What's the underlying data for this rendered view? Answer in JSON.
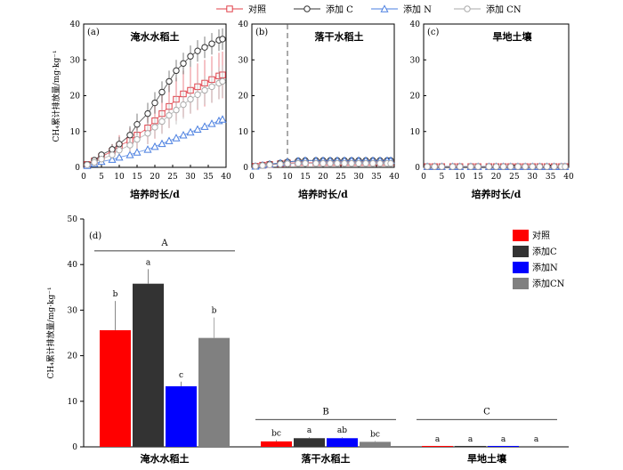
{
  "top_legend": [
    {
      "label": "对照",
      "color": "#e0404a",
      "marker": "square"
    },
    {
      "label": "添加 C",
      "color": "#333333",
      "marker": "circle"
    },
    {
      "label": "添加 N",
      "color": "#4a7fe0",
      "marker": "triangle"
    },
    {
      "label": "添加 CN",
      "color": "#aaaaaa",
      "marker": "circle"
    }
  ],
  "shared_axes": {
    "ylabel": "CH₄累计排放量/mg·kg⁻¹",
    "xlabel": "培养时长/d"
  },
  "chart_data": [
    {
      "type": "line",
      "panel": "(a)",
      "title": "淹水水稻土",
      "xlim": [
        0,
        40
      ],
      "ylim": [
        0,
        40
      ],
      "xticks": [
        0,
        5,
        10,
        15,
        20,
        25,
        30,
        35,
        40
      ],
      "yticks": [
        0,
        10,
        20,
        30,
        40
      ],
      "x": [
        1,
        3,
        5,
        8,
        10,
        13,
        15,
        18,
        20,
        22,
        24,
        26,
        28,
        30,
        32,
        34,
        36,
        38,
        39
      ],
      "series": [
        {
          "name": "对照",
          "values": [
            0.8,
            1.8,
            3,
            4.5,
            6,
            7.5,
            9,
            11,
            13,
            15,
            17,
            19,
            20.5,
            21.5,
            22.5,
            23.5,
            24.5,
            25.5,
            25.8
          ],
          "errors": [
            0.3,
            0.6,
            1,
            2,
            3,
            3.5,
            4,
            4.5,
            5,
            5.5,
            6,
            6,
            6.5,
            6.5,
            6.5,
            6.5,
            6.5,
            6.5,
            6.5
          ]
        },
        {
          "name": "添加 C",
          "values": [
            0.8,
            2,
            3.5,
            5,
            6.5,
            9,
            12,
            15,
            18,
            21,
            24,
            27,
            29,
            31,
            32.5,
            33.5,
            34.5,
            35.5,
            35.8
          ],
          "errors": [
            0.3,
            0.6,
            1,
            1.5,
            2,
            2.5,
            3,
            3,
            3,
            3,
            3,
            3,
            3,
            3,
            3,
            3,
            3,
            3,
            3
          ]
        },
        {
          "name": "添加 N",
          "values": [
            0.5,
            1,
            1.6,
            2.2,
            2.8,
            3.5,
            4.2,
            5,
            5.8,
            6.6,
            7.4,
            8.2,
            9,
            9.8,
            10.6,
            11.4,
            12.2,
            13,
            13.4
          ],
          "errors": [
            0.2,
            0.2,
            0.3,
            0.3,
            0.4,
            0.4,
            0.5,
            0.5,
            0.5,
            0.6,
            0.6,
            0.6,
            0.7,
            0.7,
            0.7,
            0.7,
            0.8,
            0.8,
            0.8
          ]
        },
        {
          "name": "添加 CN",
          "values": [
            0.7,
            1.4,
            2.3,
            3.5,
            4.8,
            6.2,
            7.8,
            9.5,
            11.2,
            12.8,
            14.5,
            16,
            17.5,
            19,
            20.3,
            21.5,
            22.5,
            23.5,
            24
          ],
          "errors": [
            0.3,
            0.5,
            0.8,
            1.2,
            1.6,
            2,
            2.5,
            3,
            3,
            3.5,
            3.5,
            4,
            4,
            4,
            4,
            4,
            4.5,
            4.5,
            4.5
          ]
        }
      ]
    },
    {
      "type": "line",
      "panel": "(b)",
      "title": "落干水稻土",
      "xlim": [
        0,
        40
      ],
      "ylim": [
        0,
        40
      ],
      "xticks": [
        0,
        5,
        10,
        15,
        20,
        25,
        30,
        35,
        40
      ],
      "yticks": [
        0,
        10,
        20,
        30,
        40
      ],
      "vline_x": 10,
      "x": [
        1,
        3,
        5,
        8,
        10,
        13,
        15,
        18,
        20,
        22,
        24,
        26,
        28,
        30,
        32,
        34,
        36,
        38,
        39
      ],
      "series": [
        {
          "name": "对照",
          "values": [
            0.3,
            0.6,
            0.8,
            1,
            1.2,
            1.3,
            1.3,
            1.3,
            1.3,
            1.3,
            1.3,
            1.3,
            1.3,
            1.3,
            1.3,
            1.3,
            1.3,
            1.3,
            1.3
          ],
          "errors": [
            0.3,
            0.3,
            0.3,
            0.3,
            0.3,
            0.3,
            0.3,
            0.3,
            0.3,
            0.3,
            0.3,
            0.3,
            0.3,
            0.3,
            0.3,
            0.3,
            0.3,
            0.3,
            0.3
          ]
        },
        {
          "name": "添加 C",
          "values": [
            0.3,
            0.6,
            0.9,
            1.2,
            1.5,
            1.8,
            1.9,
            1.9,
            1.9,
            1.9,
            1.9,
            1.9,
            1.9,
            1.9,
            1.9,
            1.9,
            1.9,
            1.9,
            1.9
          ],
          "errors": [
            0.3,
            0.3,
            0.3,
            0.3,
            0.3,
            0.3,
            0.3,
            0.3,
            0.3,
            0.3,
            0.3,
            0.3,
            0.3,
            0.3,
            0.3,
            0.3,
            0.3,
            0.3,
            0.3
          ]
        },
        {
          "name": "添加 N",
          "values": [
            0.3,
            0.6,
            0.9,
            1.2,
            1.5,
            1.8,
            1.9,
            1.9,
            1.9,
            1.9,
            1.9,
            1.9,
            1.9,
            1.9,
            1.9,
            1.9,
            1.9,
            1.9,
            1.9
          ],
          "errors": [
            0.3,
            0.3,
            0.3,
            0.3,
            0.3,
            0.3,
            0.3,
            0.3,
            0.3,
            0.3,
            0.3,
            0.3,
            0.3,
            0.3,
            0.3,
            0.3,
            0.3,
            0.3,
            0.3
          ]
        },
        {
          "name": "添加 CN",
          "values": [
            0.3,
            0.5,
            0.7,
            0.9,
            1,
            1.1,
            1.1,
            1.1,
            1.1,
            1.1,
            1.1,
            1.1,
            1.1,
            1.1,
            1.1,
            1.1,
            1.1,
            1.1,
            1.1
          ],
          "errors": [
            0.3,
            0.3,
            0.3,
            0.3,
            0.3,
            0.3,
            0.3,
            0.3,
            0.3,
            0.3,
            0.3,
            0.3,
            0.3,
            0.3,
            0.3,
            0.3,
            0.3,
            0.3,
            0.3
          ]
        }
      ]
    },
    {
      "type": "line",
      "panel": "(c)",
      "title": "旱地土壤",
      "xlim": [
        0,
        40
      ],
      "ylim": [
        0,
        40
      ],
      "xticks": [
        0,
        5,
        10,
        15,
        20,
        25,
        30,
        35,
        40
      ],
      "yticks": [
        0,
        10,
        20,
        30,
        40
      ],
      "x": [
        1,
        3,
        5,
        8,
        10,
        13,
        15,
        18,
        20,
        22,
        24,
        26,
        28,
        30,
        32,
        34,
        36,
        38,
        39
      ],
      "series": [
        {
          "name": "对照",
          "values": [
            0.2,
            0.2,
            0.2,
            0.2,
            0.2,
            0.2,
            0.2,
            0.2,
            0.2,
            0.2,
            0.2,
            0.2,
            0.2,
            0.2,
            0.2,
            0.2,
            0.2,
            0.2,
            0.2
          ],
          "errors": [
            0.3,
            0.3,
            0.3,
            0.3,
            0.3,
            0.3,
            0.3,
            0.3,
            0.3,
            0.3,
            0.3,
            0.3,
            0.3,
            0.3,
            0.3,
            0.3,
            0.3,
            0.3,
            0.3
          ]
        },
        {
          "name": "添加 C",
          "values": [
            0.2,
            0.2,
            0.2,
            0.2,
            0.2,
            0.2,
            0.2,
            0.2,
            0.2,
            0.2,
            0.2,
            0.2,
            0.2,
            0.2,
            0.2,
            0.2,
            0.2,
            0.2,
            0.2
          ],
          "errors": [
            0.3,
            0.3,
            0.3,
            0.3,
            0.3,
            0.3,
            0.3,
            0.3,
            0.3,
            0.3,
            0.3,
            0.3,
            0.3,
            0.3,
            0.3,
            0.3,
            0.3,
            0.3,
            0.3
          ]
        },
        {
          "name": "添加 N",
          "values": [
            0.2,
            0.2,
            0.2,
            0.2,
            0.2,
            0.2,
            0.2,
            0.2,
            0.2,
            0.2,
            0.2,
            0.2,
            0.2,
            0.2,
            0.2,
            0.2,
            0.2,
            0.2,
            0.2
          ],
          "errors": [
            0.3,
            0.3,
            0.3,
            0.3,
            0.3,
            0.3,
            0.3,
            0.3,
            0.3,
            0.3,
            0.3,
            0.3,
            0.3,
            0.3,
            0.3,
            0.3,
            0.3,
            0.3,
            0.3
          ]
        },
        {
          "name": "添加 CN",
          "values": [
            0.2,
            0.2,
            0.2,
            0.2,
            0.2,
            0.2,
            0.2,
            0.2,
            0.2,
            0.2,
            0.2,
            0.2,
            0.2,
            0.2,
            0.2,
            0.2,
            0.2,
            0.2,
            0.2
          ],
          "errors": [
            0.3,
            0.3,
            0.3,
            0.3,
            0.3,
            0.3,
            0.3,
            0.3,
            0.3,
            0.3,
            0.3,
            0.3,
            0.3,
            0.3,
            0.3,
            0.3,
            0.3,
            0.3,
            0.3
          ]
        }
      ]
    },
    {
      "type": "bar",
      "panel": "(d)",
      "ylim": [
        0,
        50
      ],
      "yticks": [
        0,
        10,
        20,
        30,
        40,
        50
      ],
      "ylabel": "CH₄累计排放量/mg·kg⁻¹",
      "categories": [
        "淹水水稻土",
        "落干水稻土",
        "旱地土壤"
      ],
      "group_letters": [
        "A",
        "B",
        "C"
      ],
      "legend_position": "top-right",
      "series": [
        {
          "name": "对照",
          "color": "#ff0000",
          "values": [
            25.6,
            1.2,
            0.2
          ],
          "errors": [
            6.4,
            0.3,
            0
          ],
          "letters": [
            "b",
            "bc",
            "a"
          ]
        },
        {
          "name": "添加C",
          "color": "#333333",
          "values": [
            35.8,
            1.9,
            0.2
          ],
          "errors": [
            3.2,
            0.2,
            0
          ],
          "letters": [
            "a",
            "a",
            "a"
          ]
        },
        {
          "name": "添加N",
          "color": "#0000ff",
          "values": [
            13.3,
            1.9,
            0.2
          ],
          "errors": [
            1.0,
            0.2,
            0
          ],
          "letters": [
            "c",
            "ab",
            "a"
          ]
        },
        {
          "name": "添加CN",
          "color": "#808080",
          "values": [
            23.9,
            1.1,
            0.2
          ],
          "errors": [
            4.5,
            0.2,
            0
          ],
          "letters": [
            "b",
            "bc",
            "a"
          ]
        }
      ]
    }
  ]
}
